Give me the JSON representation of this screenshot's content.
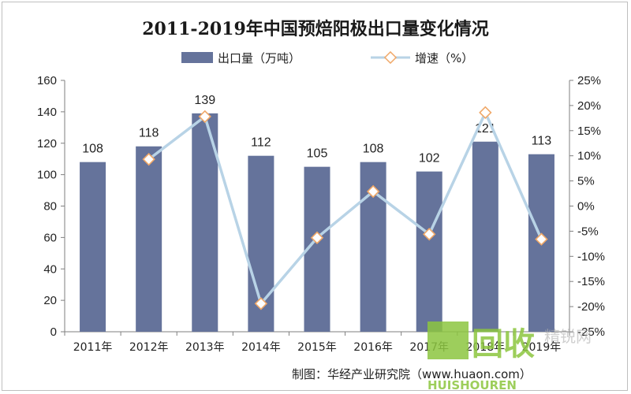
{
  "chart_data": {
    "type": "bar",
    "title": "2011-2019年中国预焙阳极出口量变化情况",
    "categories": [
      "2011年",
      "2012年",
      "2013年",
      "2014年",
      "2015年",
      "2016年",
      "2017年",
      "2018年",
      "2019年"
    ],
    "series": [
      {
        "name": "出口量（万吨）",
        "type": "bar",
        "axis": "left",
        "values": [
          108,
          118,
          139,
          112,
          105,
          108,
          102,
          121,
          113
        ],
        "labels": [
          "108",
          "118",
          "139",
          "112",
          "105",
          "108",
          "102",
          "121",
          "113"
        ]
      },
      {
        "name": "增速（%）",
        "type": "line",
        "axis": "right",
        "values": [
          null,
          9.3,
          17.8,
          -19.4,
          -6.3,
          2.9,
          -5.6,
          18.6,
          -6.6
        ]
      }
    ],
    "ylim_left": [
      0,
      160
    ],
    "yticks_left": [
      "0",
      "20",
      "40",
      "60",
      "80",
      "100",
      "120",
      "140",
      "160"
    ],
    "ylim_right": [
      -25,
      25
    ],
    "yticks_right": [
      "-25%",
      "-20%",
      "-15%",
      "-10%",
      "-5%",
      "0%",
      "5%",
      "10%",
      "15%",
      "20%",
      "25%"
    ],
    "legend_position": "top",
    "grid": false,
    "colors": {
      "bar": "#65739b",
      "line": "#b8d3e6",
      "marker_edge": "#f0a868"
    }
  },
  "source_text": "制图：华经产业研究院（www.huaon.com）",
  "watermark": {
    "main": "回收",
    "sub": "HUISHOUREN",
    "corner": "精锐网"
  }
}
